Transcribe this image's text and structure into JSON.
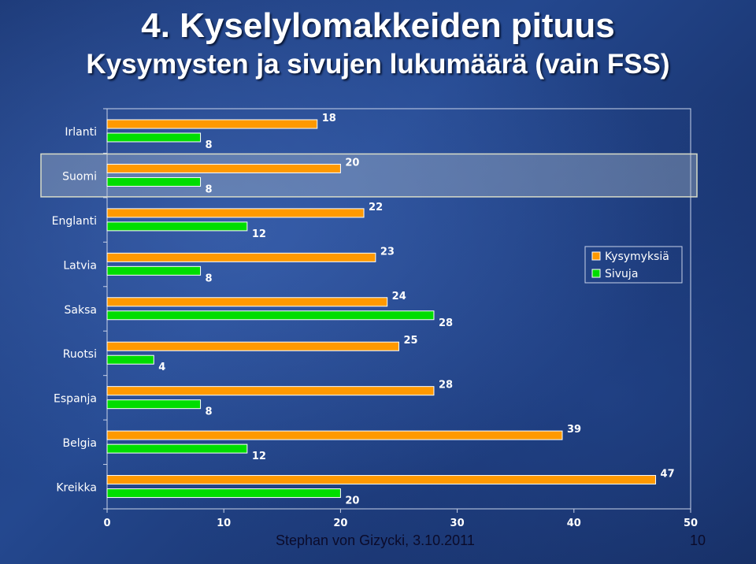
{
  "slide": {
    "title": "4. Kyselylomakkeiden pituus",
    "subtitle": "Kysymysten ja sivujen lukumäärä (vain FSS)",
    "footer": "Stephan von Gizycki, 3.10.2011",
    "page_number": "10"
  },
  "chart_data": {
    "type": "bar",
    "orientation": "horizontal",
    "categories": [
      "Irlanti",
      "Suomi",
      "Englanti",
      "Latvia",
      "Saksa",
      "Ruotsi",
      "Espanja",
      "Belgia",
      "Kreikka"
    ],
    "series": [
      {
        "name": "Kysymyksiä",
        "color": "#ff9900",
        "values": [
          18,
          20,
          22,
          23,
          24,
          25,
          28,
          39,
          47
        ]
      },
      {
        "name": "Sivuja",
        "color": "#00dd00",
        "values": [
          8,
          8,
          12,
          8,
          28,
          4,
          8,
          12,
          20
        ]
      }
    ],
    "xlim": [
      0,
      50
    ],
    "xticks": [
      0,
      10,
      20,
      30,
      40,
      50
    ],
    "highlighted_category": "Suomi",
    "legend_position": "right"
  }
}
